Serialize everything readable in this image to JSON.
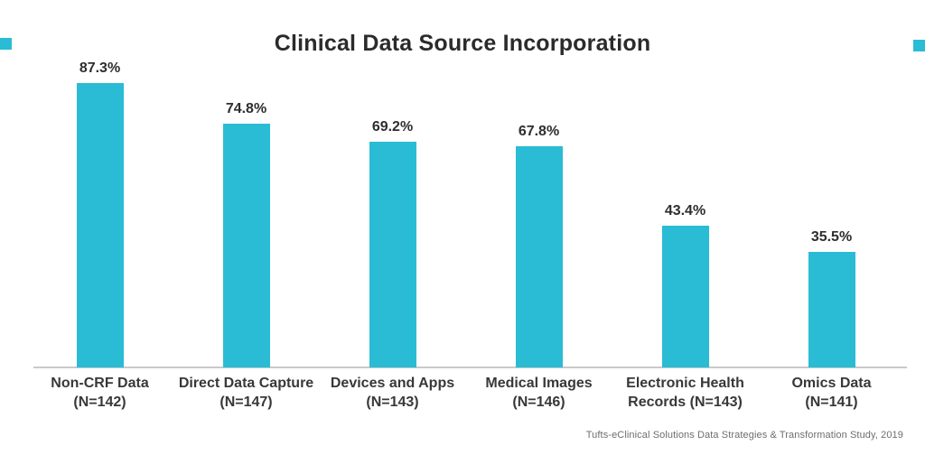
{
  "title": "Clinical Data Source Incorporation",
  "source_note": "Tufts-eClinical Solutions Data Strategies & Transformation Study, 2019",
  "colors": {
    "accent_teal": "#29bcd4",
    "title_text": "#2b2b2b",
    "value_text": "#2e2e2e",
    "category_text": "#383838",
    "axis_line": "#c9c9c9",
    "source_text": "#6e6e6e",
    "background": "#ffffff"
  },
  "chart_data": {
    "type": "bar",
    "title": "Clinical Data Source Incorporation",
    "xlabel": "",
    "ylabel": "",
    "unit": "percent",
    "ylim": [
      0,
      100
    ],
    "grid": false,
    "legend": false,
    "bar_color": "#29bcd4",
    "categories": [
      "Non-CRF Data (N=142)",
      "Direct Data Capture (N=147)",
      "Devices and Apps (N=143)",
      "Medical Images (N=146)",
      "Electronic Health Records (N=143)",
      "Omics Data (N=141)"
    ],
    "category_label_lines": [
      [
        "Non-CRF Data",
        "(N=142)"
      ],
      [
        "Direct Data Capture",
        "(N=147)"
      ],
      [
        "Devices and Apps",
        "(N=143)"
      ],
      [
        "Medical Images",
        "(N=146)"
      ],
      [
        "Electronic Health",
        "Records (N=143)"
      ],
      [
        "Omics Data",
        "(N=141)"
      ]
    ],
    "values": [
      87.3,
      74.8,
      69.2,
      67.8,
      43.4,
      35.5
    ],
    "value_labels": [
      "87.3%",
      "74.8%",
      "69.2%",
      "67.8%",
      "43.4%",
      "35.5%"
    ]
  }
}
